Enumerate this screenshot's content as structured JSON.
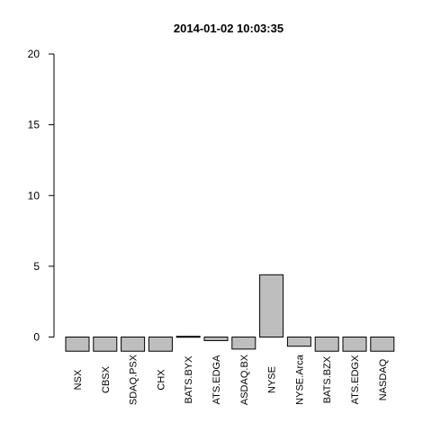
{
  "chart_data": {
    "type": "bar",
    "title": "2014-01-02 10:03:35",
    "categories": [
      "NSX",
      "CBSX",
      "SDAQ.PSX",
      "CHX",
      "BATS.BYX",
      "ATS.EDGA",
      "ASDAQ.BX",
      "NYSE",
      "NYSE.Arca",
      "BATS.BZX",
      "ATS.EDGX",
      "NASDAQ"
    ],
    "values": [
      -1,
      -1,
      -1,
      -1,
      0.05,
      -0.25,
      -0.85,
      4.4,
      -0.65,
      -1,
      -1,
      -1
    ],
    "ylim": [
      -1,
      20
    ],
    "yticks": [
      "0",
      "5",
      "10",
      "15",
      "20"
    ],
    "xlabel": "",
    "ylabel": "",
    "grid": false,
    "bar_color": "#bebebe",
    "outline_color": "#000000"
  }
}
